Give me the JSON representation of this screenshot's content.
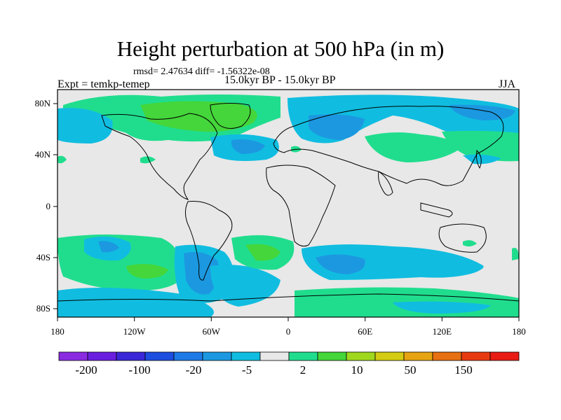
{
  "figure": {
    "title": "Height perturbation at 500 hPa (in m)",
    "stats": "rmsd= 2.47634 diff= -1.56322e-08",
    "subtitle": "15.0kyr BP - 15.0kyr BP",
    "left_label": "Expt = temkp-temep",
    "right_label": "JJA"
  },
  "axes": {
    "lat_ticks": [
      "80N",
      "40N",
      "0",
      "40S",
      "80S"
    ],
    "lon_ticks": [
      "180",
      "120W",
      "60W",
      "0",
      "60E",
      "120E",
      "180"
    ],
    "lon_range": [
      -180,
      180
    ],
    "lat_range": [
      -90,
      90
    ]
  },
  "colorbar": {
    "labels": [
      "-200",
      "-100",
      "-20",
      "-5",
      "2",
      "10",
      "50",
      "150"
    ],
    "colors": [
      "#8a2be2",
      "#6a1fe0",
      "#3a28d8",
      "#1e4ee0",
      "#1e7ae6",
      "#1c98e0",
      "#10bde0",
      "#e8e8e8",
      "#20dd8e",
      "#44d63a",
      "#a0d81e",
      "#d4cc12",
      "#e6a412",
      "#e67012",
      "#e83a10",
      "#e81c14"
    ]
  },
  "map_fills": {
    "land_outline": "#000000",
    "background": "#e8e8e8",
    "fill_blue": "#10bde0",
    "fill_blue_dark": "#1c98e0",
    "fill_green": "#20dd8e",
    "fill_green_bright": "#44d63a"
  }
}
